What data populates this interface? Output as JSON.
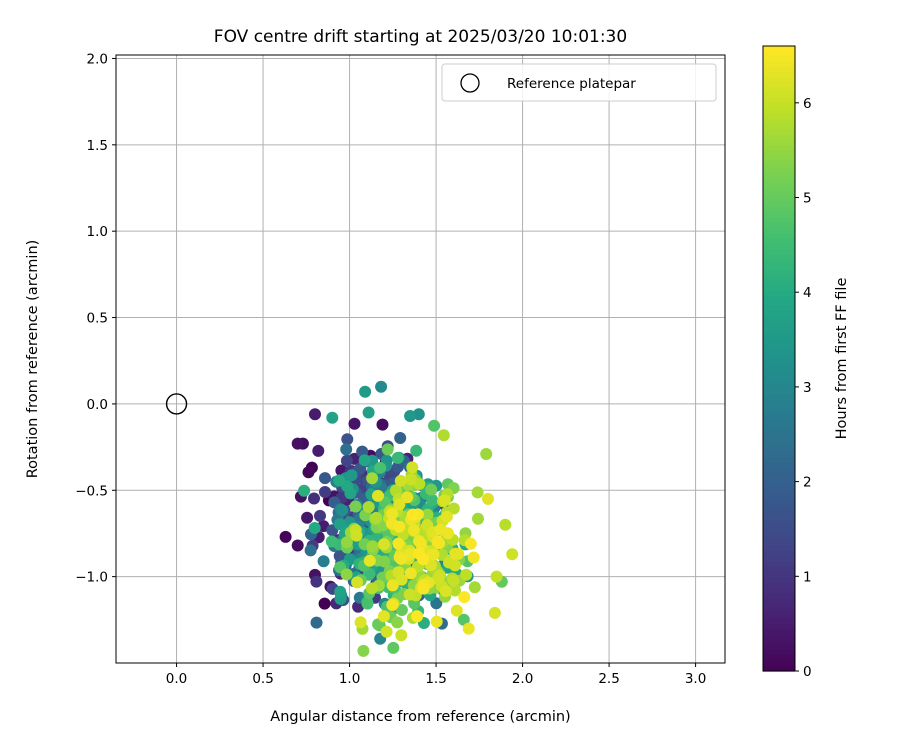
{
  "chart_data": {
    "type": "scatter",
    "title": "FOV centre drift starting at 2025/03/20 10:01:30",
    "xlabel": "Angular distance from reference (arcmin)",
    "ylabel": "Rotation from reference (arcmin)",
    "xlim": [
      -0.35,
      3.17
    ],
    "ylim": [
      -1.5,
      2.02
    ],
    "x_ticks": [
      0.0,
      0.5,
      1.0,
      1.5,
      2.0,
      2.5,
      3.0
    ],
    "y_ticks": [
      -1.0,
      -0.5,
      0.0,
      0.5,
      1.0,
      1.5,
      2.0
    ],
    "grid": true,
    "legend": {
      "placement": "top-right",
      "entries": [
        "Reference platepar"
      ]
    },
    "reference_point": {
      "x": 0.0,
      "y": 0.0,
      "label": "Reference platepar"
    },
    "colorbar": {
      "label": "Hours from first FF file",
      "colormap": "viridis",
      "range": [
        0,
        6.6
      ],
      "ticks": [
        0,
        1,
        2,
        3,
        4,
        5,
        6
      ]
    },
    "point_count_note": "dense cluster of ~700 drift measurements",
    "series": [
      {
        "color_variable": "hours",
        "points": []
      }
    ]
  }
}
